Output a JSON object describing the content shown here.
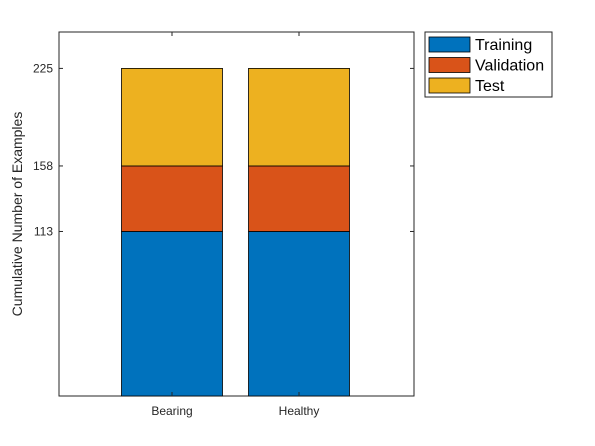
{
  "chart_data": {
    "type": "bar",
    "stacked": true,
    "categories": [
      "Bearing",
      "Healthy"
    ],
    "series": [
      {
        "name": "Training",
        "values": [
          113,
          113
        ],
        "color": "#0072BD"
      },
      {
        "name": "Validation",
        "values": [
          45,
          45
        ],
        "color": "#D95319"
      },
      {
        "name": "Test",
        "values": [
          67,
          67
        ],
        "color": "#EDB120"
      }
    ],
    "yticks": [
      113,
      158,
      225
    ],
    "ytick_labels": [
      "113",
      "158",
      "225"
    ],
    "ylim": [
      0,
      250
    ],
    "ylabel": "Cumulative Number of Examples",
    "xlabel": "",
    "title": "",
    "grid": false,
    "legend_position": "outside-top-right"
  }
}
